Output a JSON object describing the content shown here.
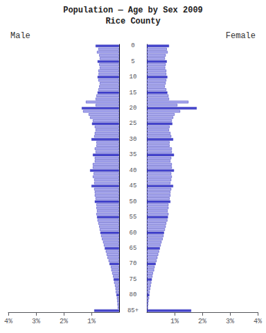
{
  "chart_data": {
    "type": "bar",
    "orientation": "horizontal",
    "title": "Population — Age by Sex 2009",
    "subtitle": "Rice County",
    "grid": false,
    "color": "#3333bb",
    "categories": [
      "85+",
      null,
      null,
      null,
      null,
      "80",
      null,
      null,
      null,
      null,
      "75",
      null,
      null,
      null,
      null,
      "70",
      null,
      null,
      null,
      null,
      "65",
      null,
      null,
      null,
      null,
      "60",
      null,
      null,
      null,
      null,
      "55",
      null,
      null,
      null,
      null,
      "50",
      null,
      null,
      null,
      null,
      "45",
      null,
      null,
      null,
      null,
      "40",
      null,
      null,
      null,
      null,
      "35",
      null,
      null,
      null,
      null,
      "30",
      null,
      null,
      null,
      null,
      "25",
      null,
      null,
      null,
      null,
      "20",
      null,
      null,
      null,
      null,
      "15",
      null,
      null,
      null,
      null,
      "10",
      null,
      null,
      null,
      null,
      "5",
      null,
      null,
      null,
      null,
      "0"
    ],
    "colors": [
      "#4444cc",
      "#aaaaee",
      "#aaaaee",
      "#aaaaee",
      "#aaaaee",
      "#4444cc",
      "#aaaaee",
      "#aaaaee",
      "#aaaaee",
      "#aaaaee",
      "#4444cc",
      "#aaaaee",
      "#aaaaee",
      "#aaaaee",
      "#aaaaee",
      "#4444cc",
      "#aaaaee",
      "#aaaaee",
      "#aaaaee",
      "#aaaaee",
      "#4444cc",
      "#aaaaee",
      "#aaaaee",
      "#aaaaee",
      "#aaaaee",
      "#4444cc",
      "#aaaaee",
      "#aaaaee",
      "#aaaaee",
      "#aaaaee",
      "#4444cc",
      "#aaaaee",
      "#aaaaee",
      "#aaaaee",
      "#aaaaee",
      "#4444cc",
      "#aaaaee",
      "#aaaaee",
      "#aaaaee",
      "#aaaaee",
      "#4444cc",
      "#aaaaee",
      "#aaaaee",
      "#aaaaee",
      "#aaaaee",
      "#4444cc",
      "#aaaaee",
      "#aaaaee",
      "#aaaaee",
      "#aaaaee",
      "#4444cc",
      "#aaaaee",
      "#aaaaee",
      "#aaaaee",
      "#aaaaee",
      "#4444cc",
      "#aaaaee",
      "#aaaaee",
      "#aaaaee",
      "#aaaaee",
      "#4444cc",
      "#aaaaee",
      "#aaaaee",
      "#aaaaee",
      "#aaaaee",
      "#4444cc",
      "#aaaaee",
      "#aaaaee",
      "#aaaaee",
      "#aaaaee",
      "#4444cc",
      "#aaaaee",
      "#aaaaee",
      "#aaaaee",
      "#aaaaee",
      "#4444cc",
      "#aaaaee",
      "#aaaaee",
      "#aaaaee",
      "#aaaaee",
      "#4444cc",
      "#aaaaee",
      "#aaaaee",
      "#aaaaee",
      "#aaaaee",
      "#4444cc"
    ],
    "series": [
      {
        "name": "Male",
        "xlim": [
          4,
          0
        ],
        "xticks": [
          {
            "value": 4,
            "label": "4%"
          },
          {
            "value": 3,
            "label": "3%"
          },
          {
            "value": 2,
            "label": "2%"
          },
          {
            "value": 1,
            "label": "1%"
          }
        ],
        "values": [
          0.9,
          0.05,
          0.06,
          0.07,
          0.08,
          0.1,
          0.12,
          0.13,
          0.15,
          0.18,
          0.2,
          0.22,
          0.25,
          0.28,
          0.3,
          0.35,
          0.38,
          0.42,
          0.45,
          0.48,
          0.52,
          0.55,
          0.58,
          0.62,
          0.65,
          0.68,
          0.7,
          0.72,
          0.75,
          0.78,
          0.8,
          0.82,
          0.8,
          0.82,
          0.82,
          0.88,
          0.85,
          0.88,
          0.88,
          0.9,
          1.0,
          0.9,
          0.9,
          0.95,
          0.92,
          1.05,
          0.95,
          0.95,
          0.88,
          0.88,
          0.95,
          0.85,
          0.88,
          0.82,
          0.82,
          1.0,
          0.9,
          0.88,
          0.85,
          0.88,
          0.98,
          0.95,
          1.05,
          1.1,
          1.3,
          1.35,
          0.85,
          1.2,
          0.85,
          0.82,
          0.78,
          0.75,
          0.72,
          0.7,
          0.75,
          0.78,
          0.74,
          0.75,
          0.7,
          0.72,
          0.78,
          0.7,
          0.72,
          0.8,
          0.75,
          0.85
        ]
      },
      {
        "name": "Female",
        "xlim": [
          0,
          4
        ],
        "xticks": [
          {
            "value": 1,
            "label": "1%"
          },
          {
            "value": 2,
            "label": "2%"
          },
          {
            "value": 3,
            "label": "3%"
          },
          {
            "value": 4,
            "label": "4%"
          }
        ],
        "values": [
          1.6,
          0.04,
          0.05,
          0.06,
          0.08,
          0.09,
          0.1,
          0.12,
          0.14,
          0.16,
          0.18,
          0.2,
          0.22,
          0.26,
          0.28,
          0.32,
          0.35,
          0.38,
          0.41,
          0.44,
          0.47,
          0.5,
          0.53,
          0.57,
          0.6,
          0.62,
          0.65,
          0.68,
          0.7,
          0.74,
          0.76,
          0.78,
          0.75,
          0.78,
          0.78,
          0.85,
          0.82,
          0.85,
          0.85,
          0.88,
          0.95,
          0.85,
          0.88,
          0.9,
          0.88,
          0.98,
          0.9,
          0.9,
          0.85,
          0.88,
          0.98,
          0.9,
          0.9,
          0.82,
          0.82,
          0.95,
          0.88,
          0.85,
          0.8,
          0.82,
          0.92,
          0.9,
          0.95,
          1.0,
          1.2,
          1.8,
          1.1,
          1.5,
          0.8,
          0.78,
          0.74,
          0.7,
          0.65,
          0.68,
          0.7,
          0.74,
          0.7,
          0.7,
          0.66,
          0.68,
          0.72,
          0.65,
          0.68,
          0.75,
          0.72,
          0.8
        ]
      }
    ]
  }
}
